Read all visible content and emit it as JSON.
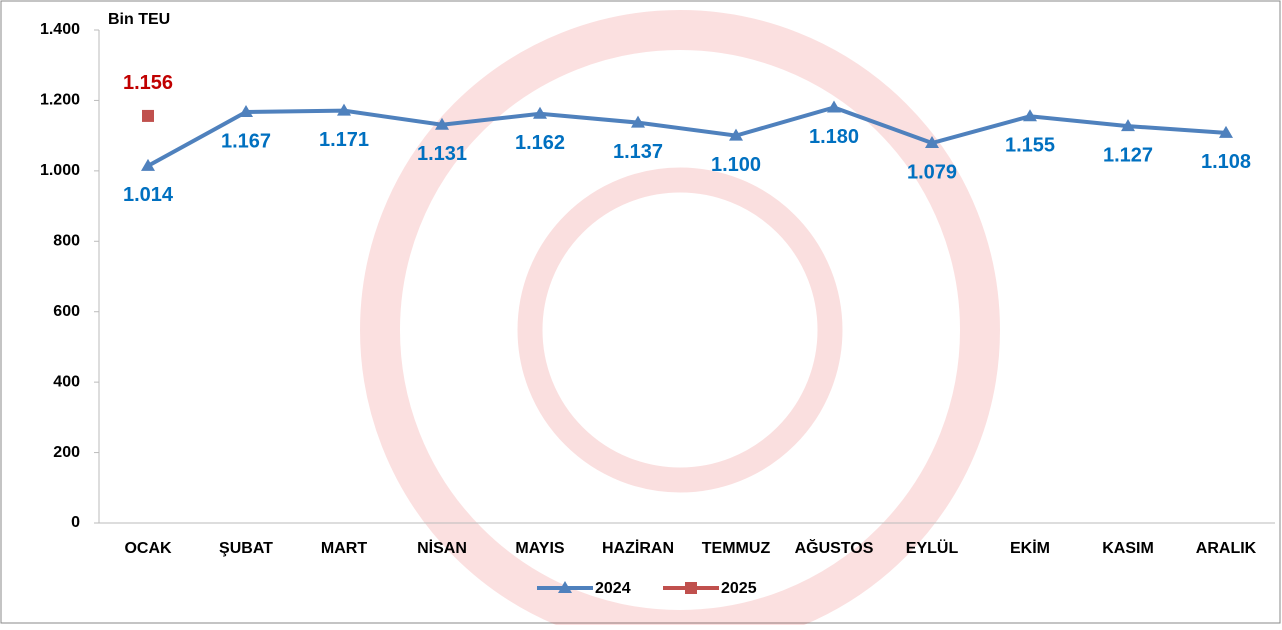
{
  "chart_data": {
    "type": "line",
    "y_label": "Bin TEU",
    "categories": [
      "OCAK",
      "ŞUBAT",
      "MART",
      "NİSAN",
      "MAYIS",
      "HAZİRAN",
      "TEMMUZ",
      "AĞUSTOS",
      "EYLÜL",
      "EKİM",
      "KASIM",
      "ARALIK"
    ],
    "series": [
      {
        "name": "2024",
        "color": "#4f81bd",
        "label_color": "#0070c0",
        "marker": "triangle",
        "values": [
          1014,
          1167,
          1171,
          1131,
          1162,
          1137,
          1100,
          1180,
          1079,
          1155,
          1127,
          1108
        ],
        "value_labels": [
          "1.014",
          "1.167",
          "1.171",
          "1.131",
          "1.162",
          "1.137",
          "1.100",
          "1.180",
          "1.079",
          "1.155",
          "1.127",
          "1.108"
        ]
      },
      {
        "name": "2025",
        "color": "#c0504d",
        "label_color": "#c00000",
        "marker": "square",
        "values": [
          1156,
          null,
          null,
          null,
          null,
          null,
          null,
          null,
          null,
          null,
          null,
          null
        ],
        "value_labels": [
          "1.156",
          null,
          null,
          null,
          null,
          null,
          null,
          null,
          null,
          null,
          null,
          null
        ]
      }
    ],
    "ylim": [
      0,
      1400
    ],
    "yticks": [
      0,
      200,
      400,
      600,
      800,
      {
        "value": 1000,
        "label": "1.000"
      },
      {
        "value": 1200,
        "label": "1.200"
      },
      {
        "value": 1400,
        "label": "1.400"
      }
    ],
    "grid": false,
    "legend": "bottom"
  }
}
